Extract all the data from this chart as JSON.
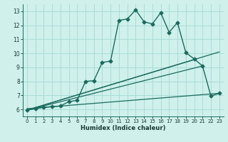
{
  "xlabel": "Humidex (Indice chaleur)",
  "xlim": [
    -0.5,
    23.5
  ],
  "ylim": [
    5.5,
    13.5
  ],
  "xticks": [
    0,
    1,
    2,
    3,
    4,
    5,
    6,
    7,
    8,
    9,
    10,
    11,
    12,
    13,
    14,
    15,
    16,
    17,
    18,
    19,
    20,
    21,
    22,
    23
  ],
  "yticks": [
    6,
    7,
    8,
    9,
    10,
    11,
    12,
    13
  ],
  "bg_color": "#cff0eb",
  "grid_color": "#a8ddd7",
  "line_color": "#1a6b5e",
  "series": [
    {
      "x": [
        0,
        1,
        2,
        3,
        4,
        5,
        6,
        7,
        8,
        9,
        10,
        11,
        12,
        13,
        14,
        15,
        16,
        17,
        18,
        19,
        20,
        21,
        22,
        23
      ],
      "y": [
        5.95,
        6.05,
        6.15,
        6.2,
        6.25,
        6.55,
        6.65,
        8.0,
        8.05,
        9.35,
        9.45,
        12.35,
        12.45,
        13.1,
        12.25,
        12.1,
        12.9,
        11.5,
        12.2,
        10.05,
        9.6,
        9.1,
        6.95,
        7.15
      ],
      "marker": "D",
      "markersize": 2.5,
      "linewidth": 1.0
    },
    {
      "x": [
        0,
        23
      ],
      "y": [
        5.95,
        10.1
      ],
      "marker": null,
      "linewidth": 0.9
    },
    {
      "x": [
        0,
        20
      ],
      "y": [
        5.95,
        9.55
      ],
      "marker": null,
      "linewidth": 0.9
    },
    {
      "x": [
        0,
        21
      ],
      "y": [
        5.95,
        9.1
      ],
      "marker": null,
      "linewidth": 0.9
    },
    {
      "x": [
        0,
        23
      ],
      "y": [
        6.05,
        7.15
      ],
      "marker": null,
      "linewidth": 0.9
    }
  ]
}
